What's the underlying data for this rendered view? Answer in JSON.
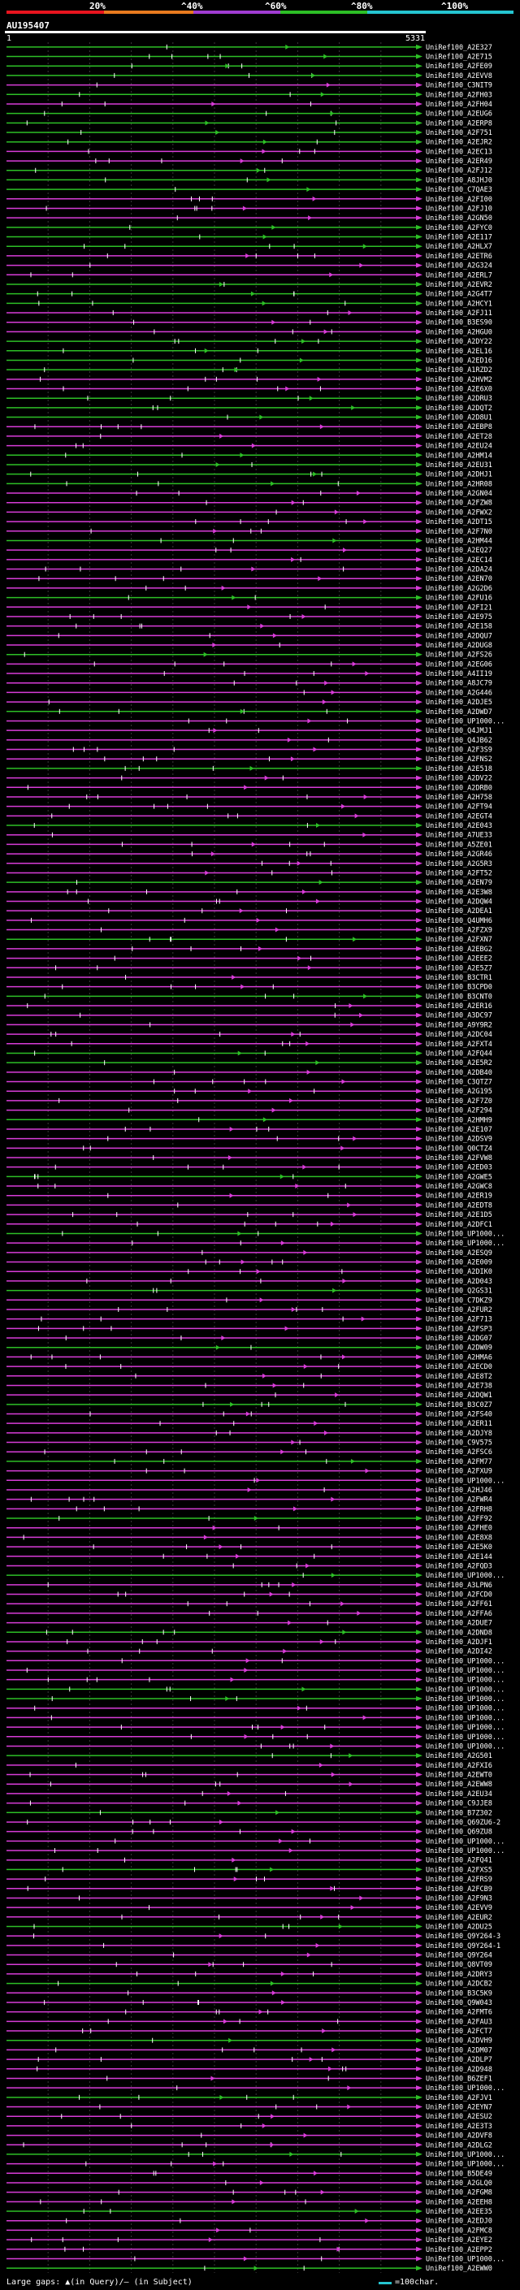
{
  "legend": {
    "labels": [
      "20%",
      "^40%",
      "^60%",
      "^80%",
      "^100%"
    ],
    "colors": [
      "#e8141e",
      "#e87a1e",
      "#a03cd2",
      "#2dbf26",
      "#25c5d1"
    ]
  },
  "query": {
    "name": "AU195407",
    "start": "1",
    "end": "5331"
  },
  "footer": {
    "gaps_text": "Large gaps: ▲(in Query)/– (in Subject)",
    "scale_text": "=100char."
  },
  "chart_data": {
    "type": "alignment",
    "length": 5331,
    "hits": [
      "UniRef100_A2E327",
      "UniRef100_A2E715",
      "UniRef100_A2FE09",
      "UniRef100_A2EVV8",
      "UniRef100_C3NIT9",
      "UniRef100_A2FH03",
      "UniRef100_A2FH04",
      "UniRef100_A2EUG6",
      "UniRef100_A2ERP8",
      "UniRef100_A2F751",
      "UniRef100_A2EJR2",
      "UniRef100_A2EC13",
      "UniRef100_A2ER49",
      "UniRef100_A2FJ12",
      "UniRef100_A8JHJ0",
      "UniRef100_C7QAE3",
      "UniRef100_A2FI00",
      "UniRef100_A2FJ10",
      "UniRef100_A2GN50",
      "UniRef100_A2FYC0",
      "UniRef100_A2E117",
      "UniRef100_A2HLX7",
      "UniRef100_A2ETR6",
      "UniRef100_A2G324",
      "UniRef100_A2ERL7",
      "UniRef100_A2EVR2",
      "UniRef100_A2G4T7",
      "UniRef100_A2HCY1",
      "UniRef100_A2FJ11",
      "UniRef100_B3ES90",
      "UniRef100_A2HGU0",
      "UniRef100_A2DY22",
      "UniRef100_A2EL16",
      "UniRef100_A2ED16",
      "UniRef100_A1RZD2",
      "UniRef100_A2HVM2",
      "UniRef100_A2E6X0",
      "UniRef100_A2DRU3",
      "UniRef100_A2DQT2",
      "UniRef100_A2D8U1",
      "UniRef100_A2EBP8",
      "UniRef100_A2ET28",
      "UniRef100_A2EU24",
      "UniRef100_A2HM14",
      "UniRef100_A2EU31",
      "UniRef100_A2DHJ1",
      "UniRef100_A2HR08",
      "UniRef100_A2GN04",
      "UniRef100_A2FZW8",
      "UniRef100_A2FWX2",
      "UniRef100_A2DT15",
      "UniRef100_A2F7N0",
      "UniRef100_A2HM44",
      "UniRef100_A2EQ27",
      "UniRef100_A2EC14",
      "UniRef100_A2DA24",
      "UniRef100_A2EN70",
      "UniRef100_A2G2D6",
      "UniRef100_A2FU16",
      "UniRef100_A2FI21",
      "UniRef100_A2E975",
      "UniRef100_A2E158",
      "UniRef100_A2DQU7",
      "UniRef100_A2DUG8",
      "UniRef100_A2FS26",
      "UniRef100_A2EG06",
      "UniRef100_A4II19",
      "UniRef100_A8JC79",
      "UniRef100_A2G446",
      "UniRef100_A2DJE5",
      "UniRef100_A2DWD7",
      "UniRef100_UP1000...",
      "UniRef100_Q4JMJ1",
      "UniRef100_Q4JB62",
      "UniRef100_A2F3S9",
      "UniRef100_A2FNS2",
      "UniRef100_A2E518",
      "UniRef100_A2DV22",
      "UniRef100_A2DRB0",
      "UniRef100_A2H758",
      "UniRef100_A2FT94",
      "UniRef100_A2EGT4",
      "UniRef100_A2E043",
      "UniRef100_A7UE33",
      "UniRef100_A5ZE01",
      "UniRef100_A2GR46",
      "UniRef100_A2G5R3",
      "UniRef100_A2FT52",
      "UniRef100_A2EN79",
      "UniRef100_A2E3W8",
      "UniRef100_A2DQW4",
      "UniRef100_A2DEA1",
      "UniRef100_Q4UMH6",
      "UniRef100_A2FZX9",
      "UniRef100_A2FXN7",
      "UniRef100_A2EBG2",
      "UniRef100_A2EEE2",
      "UniRef100_A2E5Z7",
      "UniRef100_B3CTR1",
      "UniRef100_B3CPD0",
      "UniRef100_B3CNT0",
      "UniRef100_A2ER16",
      "UniRef100_A3DC97",
      "UniRef100_A9Y9R2",
      "UniRef100_A2DC04",
      "UniRef100_A2FXT4",
      "UniRef100_A2FQ44",
      "UniRef100_A2E5R2",
      "UniRef100_A2DB40",
      "UniRef100_C3QTZ7",
      "UniRef100_A2G195",
      "UniRef100_A2F7Z0",
      "UniRef100_A2F294",
      "UniRef100_A2HMH9",
      "UniRef100_A2E107",
      "UniRef100_A2DSV9",
      "UniRef100_Q0CTZ4",
      "UniRef100_A2FVW8",
      "UniRef100_A2ED03",
      "UniRef100_A2GWE5",
      "UniRef100_A2GWC8",
      "UniRef100_A2ER19",
      "UniRef100_A2EDT8",
      "UniRef100_A2E1D5",
      "UniRef100_A2DFC1",
      "UniRef100_UP1000...",
      "UniRef100_UP1000...",
      "UniRef100_A2ESQ9",
      "UniRef100_A2E009",
      "UniRef100_A2DIK0",
      "UniRef100_A2D043",
      "UniRef100_Q2GS31",
      "UniRef100_C7DKZ9",
      "UniRef100_A2FUR2",
      "UniRef100_A2F713",
      "UniRef100_A2FSP3",
      "UniRef100_A2DG07",
      "UniRef100_A2DW09",
      "UniRef100_A2HMA6",
      "UniRef100_A2ECD0",
      "UniRef100_A2E8T2",
      "UniRef100_A2E738",
      "UniRef100_A2DQW1",
      "UniRef100_B3C0Z7",
      "UniRef100_A2FS40",
      "UniRef100_A2ER11",
      "UniRef100_A2DJY8",
      "UniRef100_C9V575",
      "UniRef100_A2FSC6",
      "UniRef100_A2FM77",
      "UniRef100_A2FXU9",
      "UniRef100_UP1000...",
      "UniRef100_A2HJ46",
      "UniRef100_A2FWR4",
      "UniRef100_A2FRH8",
      "UniRef100_A2FF92",
      "UniRef100_A2FHE0",
      "UniRef100_A2E8X8",
      "UniRef100_A2E5K0",
      "UniRef100_A2E144",
      "UniRef100_A2FQD3",
      "UniRef100_UP1000...",
      "UniRef100_A3LPN6",
      "UniRef100_A2FCD0",
      "UniRef100_A2FF61",
      "UniRef100_A2FFA6",
      "UniRef100_A2DUE7",
      "UniRef100_A2DND8",
      "UniRef100_A2DJF1",
      "UniRef100_A2DI42",
      "UniRef100_UP1000...",
      "UniRef100_UP1000...",
      "UniRef100_UP1000...",
      "UniRef100_UP1000...",
      "UniRef100_UP1000...",
      "UniRef100_UP1000...",
      "UniRef100_UP1000...",
      "UniRef100_UP1000...",
      "UniRef100_UP1000...",
      "UniRef100_UP1000...",
      "UniRef100_A2G501",
      "UniRef100_A2FXI6",
      "UniRef100_A2EWT0",
      "UniRef100_A2EWW8",
      "UniRef100_A2EU34",
      "UniRef100_C9JJE8",
      "UniRef100_B7Z302",
      "UniRef100_Q69ZU6-2",
      "UniRef100_Q69ZU8",
      "UniRef100_UP1000...",
      "UniRef100_UP1000...",
      "UniRef100_A2FQ41",
      "UniRef100_A2FXS5",
      "UniRef100_A2FRS9",
      "UniRef100_A2FCB9",
      "UniRef100_A2F9N3",
      "UniRef100_A2EVV9",
      "UniRef100_A2EUR2",
      "UniRef100_A2DU25",
      "UniRef100_Q9Y264-3",
      "UniRef100_Q9Y264-1",
      "UniRef100_Q9Y264",
      "UniRef100_Q8VT09",
      "UniRef100_A2DRY3",
      "UniRef100_A2DCB2",
      "UniRef100_B3C5K9",
      "UniRef100_Q9W043",
      "UniRef100_A2FMT6",
      "UniRef100_A2FAU3",
      "UniRef100_A2FCT7",
      "UniRef100_A2DVH9",
      "UniRef100_A2DM07",
      "UniRef100_A2DLP7",
      "UniRef100_A2D948",
      "UniRef100_B6ZEF1",
      "UniRef100_UP1000...",
      "UniRef100_A2FJV1",
      "UniRef100_A2EYN7",
      "UniRef100_A2ESU2",
      "UniRef100_A2E3T3",
      "UniRef100_A2DVF8",
      "UniRef100_A2DLG2",
      "UniRef100_UP1000...",
      "UniRef100_UP1000...",
      "UniRef100_B5DE49",
      "UniRef100_A2GLQ0",
      "UniRef100_A2FGM8",
      "UniRef100_A2EEH8",
      "UniRef100_A2EE35",
      "UniRef100_A2EDJ0",
      "UniRef100_A2FMC8",
      "UniRef100_A2EYE2",
      "UniRef100_A2EPP2",
      "UniRef100_UP1000...",
      "UniRef100_A2EWW0"
    ]
  }
}
